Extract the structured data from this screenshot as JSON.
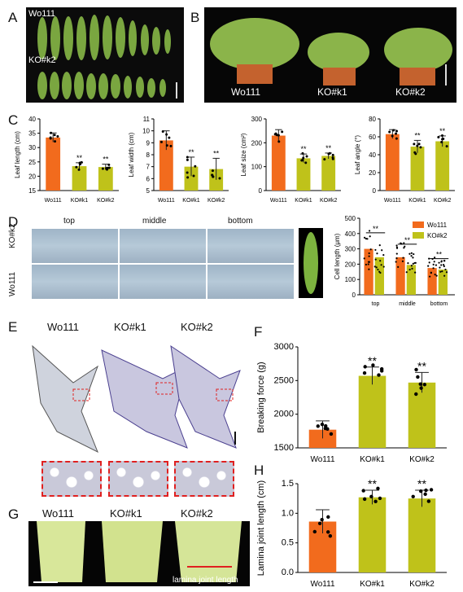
{
  "panels": {
    "A": {
      "letter": "A",
      "row1": "Wo111",
      "row2": "KO#k2"
    },
    "B": {
      "letter": "B",
      "labels": [
        "Wo111",
        "KO#k1",
        "KO#k2"
      ]
    },
    "C": {
      "letter": "C"
    },
    "D": {
      "letter": "D",
      "cols": [
        "top",
        "middle",
        "bottom"
      ],
      "rows": [
        "KO#k2",
        "Wo111"
      ]
    },
    "E": {
      "letter": "E",
      "labels": [
        "Wo111",
        "KO#k1",
        "KO#k2"
      ]
    },
    "F": {
      "letter": "F"
    },
    "G": {
      "letter": "G",
      "labels": [
        "Wo111",
        "KO#k1",
        "KO#k2"
      ],
      "annotation": "lamina joint length"
    },
    "H": {
      "letter": "H"
    }
  },
  "colors": {
    "wo111": "#f26b1d",
    "ko": "#bfc21a",
    "error": "#222222"
  },
  "significance": "**",
  "chart_data": [
    {
      "id": "C1",
      "type": "bar",
      "categories": [
        "Wo111",
        "KO#k1",
        "KO#k2"
      ],
      "values": [
        33.5,
        23.5,
        23.2
      ],
      "errors": [
        1.6,
        1.2,
        1.0
      ],
      "ylabel": "Leaf length (cm)",
      "ylim": [
        15,
        40
      ],
      "yticks": [
        15,
        20,
        25,
        30,
        35,
        40
      ],
      "sig": [
        false,
        true,
        true
      ]
    },
    {
      "id": "C2",
      "type": "bar",
      "categories": [
        "Wo111",
        "KO#k1",
        "KO#k2"
      ],
      "values": [
        9.2,
        7.0,
        6.8
      ],
      "errors": [
        0.8,
        0.8,
        0.9
      ],
      "ylabel": "Leaf width (cm)",
      "ylim": [
        5,
        11
      ],
      "yticks": [
        5,
        6,
        7,
        8,
        9,
        10,
        11
      ],
      "sig": [
        false,
        true,
        true
      ]
    },
    {
      "id": "C3",
      "type": "bar",
      "categories": [
        "Wo111",
        "KO#k1",
        "KO#k2"
      ],
      "values": [
        230,
        135,
        145
      ],
      "errors": [
        25,
        18,
        12
      ],
      "ylabel": "Leaf size (cm²)",
      "ylim": [
        0,
        300
      ],
      "yticks": [
        0,
        100,
        200,
        300
      ],
      "sig": [
        false,
        true,
        true
      ]
    },
    {
      "id": "C4",
      "type": "bar",
      "categories": [
        "Wo111",
        "KO#k1",
        "KO#k2"
      ],
      "values": [
        63,
        49,
        55
      ],
      "errors": [
        5,
        7,
        6
      ],
      "ylabel": "Leaf angle (°)",
      "ylim": [
        0,
        80
      ],
      "yticks": [
        0,
        20,
        40,
        60,
        80
      ],
      "sig": [
        false,
        true,
        true
      ]
    },
    {
      "id": "D",
      "type": "bar",
      "categories": [
        "top",
        "middle",
        "bottom"
      ],
      "series": [
        {
          "name": "Wo111",
          "values": [
            300,
            245,
            175
          ]
        },
        {
          "name": "KO#k2",
          "values": [
            245,
            195,
            165
          ]
        }
      ],
      "ylabel": "Cell length (μm)",
      "ylim": [
        0,
        500
      ],
      "yticks": [
        0,
        100,
        200,
        300,
        400,
        500
      ],
      "legend": "top-right"
    },
    {
      "id": "F",
      "type": "bar",
      "categories": [
        "Wo111",
        "KO#k1",
        "KO#k2"
      ],
      "values": [
        1770,
        2570,
        2470
      ],
      "errors": [
        130,
        130,
        150
      ],
      "ylabel": "Breaking force (g)",
      "ylim": [
        1500,
        3000
      ],
      "yticks": [
        1500,
        2000,
        2500,
        3000
      ],
      "sig": [
        false,
        true,
        true
      ]
    },
    {
      "id": "H",
      "type": "bar",
      "categories": [
        "Wo111",
        "KO#k1",
        "KO#k2"
      ],
      "values": [
        0.86,
        1.27,
        1.25
      ],
      "errors": [
        0.2,
        0.12,
        0.14
      ],
      "ylabel": "Lamina joint length (cm)",
      "ylim": [
        0,
        1.5
      ],
      "yticks": [
        "0.0",
        "0.5",
        "1.0",
        "1.5"
      ],
      "sig": [
        false,
        true,
        true
      ]
    }
  ]
}
